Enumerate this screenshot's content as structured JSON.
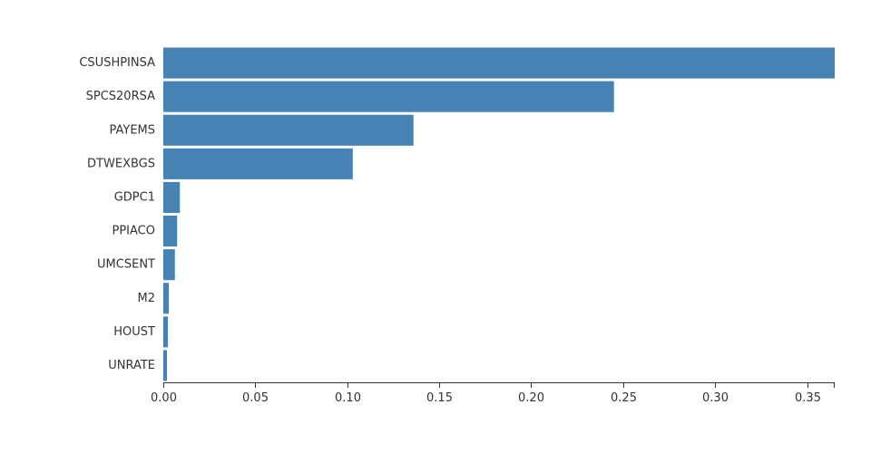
{
  "chart_data": {
    "type": "bar",
    "orientation": "horizontal",
    "title": "",
    "xlabel": "",
    "ylabel": "",
    "categories": [
      "CSUSHPINSA",
      "SPCS20RSA",
      "PAYEMS",
      "DTWEXBGS",
      "GDPC1",
      "PPIACO",
      "UMCSENT",
      "M2",
      "HOUST",
      "UNRATE"
    ],
    "values": [
      0.365,
      0.245,
      0.136,
      0.103,
      0.009,
      0.0075,
      0.0063,
      0.003,
      0.0025,
      0.002
    ],
    "xlim": [
      0,
      0.365
    ],
    "xticks": [
      "0.00",
      "0.05",
      "0.10",
      "0.15",
      "0.20",
      "0.25",
      "0.30",
      "0.35"
    ],
    "grid": false,
    "legend": "none",
    "bar_color": "#4682b4"
  }
}
